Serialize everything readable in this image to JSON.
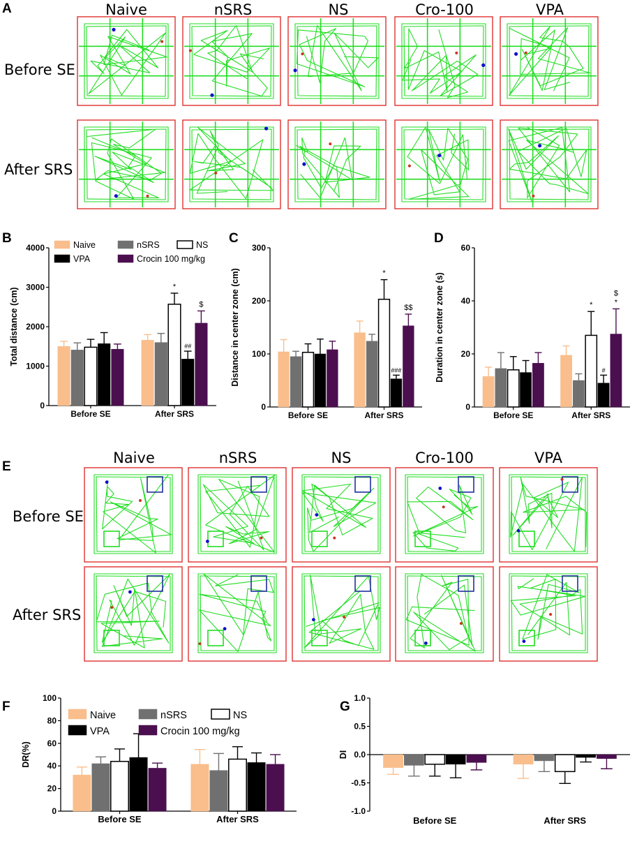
{
  "panel_letters": [
    "A",
    "B",
    "C",
    "D",
    "E",
    "F",
    "G"
  ],
  "groups": [
    "Naive",
    "nSRS",
    "NS",
    "Cro-100",
    "VPA"
  ],
  "row_labels": {
    "before": "Before SE",
    "after": "After SRS"
  },
  "colors": {
    "naive": "#F9BE8C",
    "nsrs": "#707070",
    "ns": "#FFFFFF",
    "vpa": "#000000",
    "crocin": "#4B0F4F",
    "track": "#22DD22",
    "frame": "#E03030",
    "zone": "#1F2F9F",
    "dot_blue": "#1010CC",
    "dot_red": "#CC3322"
  },
  "legend": {
    "naive": "Naive",
    "nsrs": "nSRS",
    "ns": "NS",
    "vpa": "VPA",
    "crocin": "Crocin 100 mg/kg"
  },
  "chart_data": [
    {
      "id": "B",
      "type": "bar",
      "ylabel": "Total distance (cm)",
      "ylim": [
        0,
        4000
      ],
      "yticks": [
        0,
        1000,
        2000,
        3000,
        4000
      ],
      "categories": [
        "Before SE",
        "After SRS"
      ],
      "series": [
        {
          "name": "Naive",
          "values": [
            1500,
            1660
          ],
          "errors": [
            130,
            140
          ]
        },
        {
          "name": "nSRS",
          "values": [
            1410,
            1600
          ],
          "errors": [
            180,
            230
          ]
        },
        {
          "name": "NS",
          "values": [
            1480,
            2570
          ],
          "errors": [
            200,
            280
          ]
        },
        {
          "name": "VPA",
          "values": [
            1570,
            1180
          ],
          "errors": [
            280,
            200
          ]
        },
        {
          "name": "Crocin 100 mg/kg",
          "values": [
            1430,
            2090
          ],
          "errors": [
            130,
            310
          ]
        }
      ],
      "annotations": [
        {
          "category": 1,
          "series": 2,
          "text": "*"
        },
        {
          "category": 1,
          "series": 3,
          "text": "##"
        },
        {
          "category": 1,
          "series": 4,
          "text": "$"
        }
      ]
    },
    {
      "id": "C",
      "type": "bar",
      "ylabel": "Distance in center zone (cm)",
      "ylim": [
        0,
        300
      ],
      "yticks": [
        0,
        100,
        200,
        300
      ],
      "categories": [
        "Before SE",
        "After SRS"
      ],
      "series": [
        {
          "name": "Naive",
          "values": [
            104,
            140
          ],
          "errors": [
            23,
            22
          ]
        },
        {
          "name": "nSRS",
          "values": [
            95,
            124
          ],
          "errors": [
            10,
            13
          ]
        },
        {
          "name": "NS",
          "values": [
            103,
            203
          ],
          "errors": [
            16,
            37
          ]
        },
        {
          "name": "VPA",
          "values": [
            100,
            53
          ],
          "errors": [
            28,
            7
          ]
        },
        {
          "name": "Crocin 100 mg/kg",
          "values": [
            108,
            153
          ],
          "errors": [
            16,
            22
          ]
        }
      ],
      "annotations": [
        {
          "category": 1,
          "series": 2,
          "text": "*"
        },
        {
          "category": 1,
          "series": 3,
          "text": "###"
        },
        {
          "category": 1,
          "series": 4,
          "text": "$$"
        }
      ]
    },
    {
      "id": "D",
      "type": "bar",
      "ylabel": "Duration in center zone (s)",
      "ylim": [
        0,
        60
      ],
      "yticks": [
        0,
        20,
        40,
        60
      ],
      "categories": [
        "Before SE",
        "After SRS"
      ],
      "series": [
        {
          "name": "Naive",
          "values": [
            11.5,
            19.5
          ],
          "errors": [
            3.5,
            3.5
          ]
        },
        {
          "name": "nSRS",
          "values": [
            14.5,
            10
          ],
          "errors": [
            6,
            2.5
          ]
        },
        {
          "name": "NS",
          "values": [
            14,
            27
          ],
          "errors": [
            5,
            9
          ]
        },
        {
          "name": "VPA",
          "values": [
            13,
            9
          ],
          "errors": [
            4.5,
            3
          ]
        },
        {
          "name": "Crocin 100 mg/kg",
          "values": [
            16.5,
            27.5
          ],
          "errors": [
            4,
            9.5
          ]
        }
      ],
      "annotations": [
        {
          "category": 1,
          "series": 2,
          "text": "*"
        },
        {
          "category": 1,
          "series": 3,
          "text": "#"
        },
        {
          "category": 1,
          "series": 4,
          "text": "*"
        },
        {
          "category": 1,
          "series": 4,
          "text": "$",
          "stack": 1
        }
      ]
    },
    {
      "id": "F",
      "type": "bar",
      "ylabel": "DR(%)",
      "ylim": [
        0,
        100
      ],
      "yticks": [
        0,
        20,
        40,
        60,
        80,
        100
      ],
      "categories": [
        "Before SE",
        "After SRS"
      ],
      "series": [
        {
          "name": "Naive",
          "values": [
            32,
            41.5
          ],
          "errors": [
            7,
            13
          ]
        },
        {
          "name": "nSRS",
          "values": [
            42,
            36
          ],
          "errors": [
            6,
            15
          ]
        },
        {
          "name": "NS",
          "values": [
            44,
            46
          ],
          "errors": [
            11,
            11
          ]
        },
        {
          "name": "VPA",
          "values": [
            47.5,
            43
          ],
          "errors": [
            21,
            8.5
          ]
        },
        {
          "name": "Crocin 100 mg/kg",
          "values": [
            38,
            41.5
          ],
          "errors": [
            4.5,
            8.5
          ]
        }
      ],
      "annotations": []
    },
    {
      "id": "G",
      "type": "bar",
      "ylabel": "DI",
      "ylim": [
        -1.0,
        1.0
      ],
      "yticks": [
        -1.0,
        -0.5,
        0.0,
        0.5,
        1.0
      ],
      "categories": [
        "Before SE",
        "After SRS"
      ],
      "series": [
        {
          "name": "Naive",
          "values": [
            -0.23,
            -0.17
          ],
          "errors": [
            0.12,
            0.25
          ]
        },
        {
          "name": "nSRS",
          "values": [
            -0.19,
            -0.11
          ],
          "errors": [
            0.19,
            0.19
          ]
        },
        {
          "name": "NS",
          "values": [
            -0.17,
            -0.3
          ],
          "errors": [
            0.21,
            0.21
          ]
        },
        {
          "name": "VPA",
          "values": [
            -0.17,
            -0.05
          ],
          "errors": [
            0.24,
            0.08
          ]
        },
        {
          "name": "Crocin 100 mg/kg",
          "values": [
            -0.14,
            -0.07
          ],
          "errors": [
            0.13,
            0.18
          ]
        }
      ],
      "annotations": []
    }
  ]
}
